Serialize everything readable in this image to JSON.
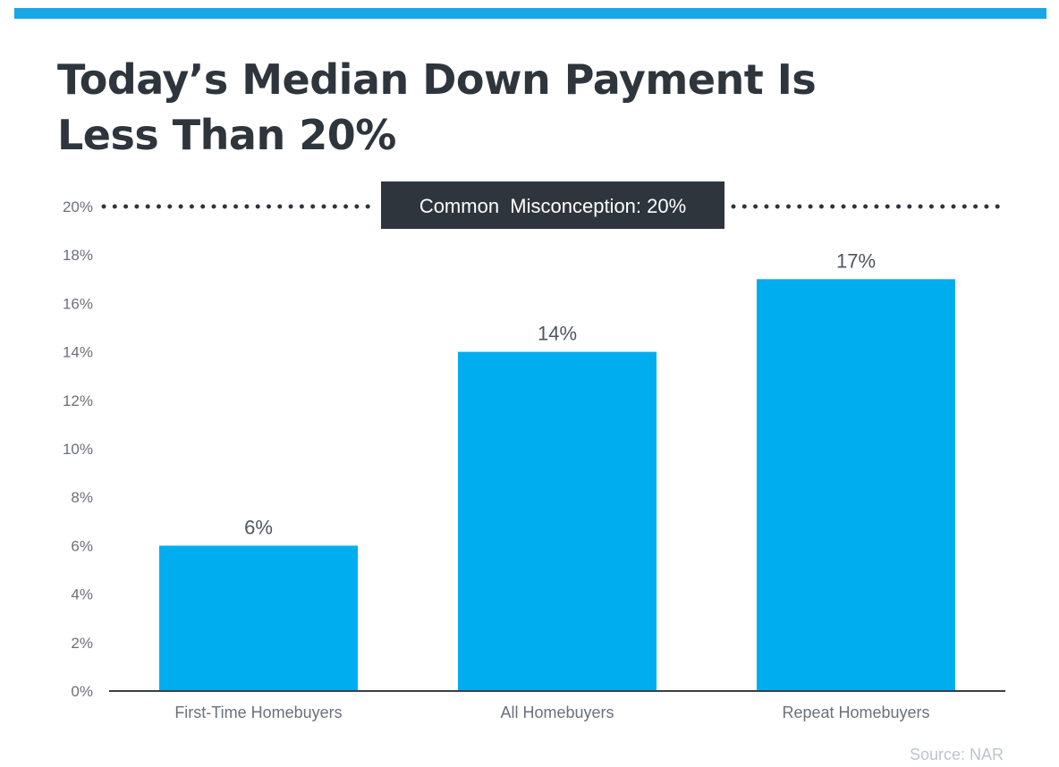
{
  "title_lines": [
    "Today’s Median Down Payment Is",
    "Less Than 20%"
  ],
  "callout": "Common  Misconception: 20%",
  "source": "Source: NAR",
  "colors": {
    "bar": "#00aeef",
    "accent_bar": "#1aa7e6",
    "title": "#2e353d",
    "callout_bg": "#2e353d"
  },
  "chart_data": {
    "type": "bar",
    "categories": [
      "First-Time Homebuyers",
      "All Homebuyers",
      "Repeat Homebuyers"
    ],
    "values": [
      6,
      14,
      17
    ],
    "data_labels": [
      "6%",
      "14%",
      "17%"
    ],
    "ylim": [
      0,
      20
    ],
    "yticks": [
      "0%",
      "2%",
      "4%",
      "6%",
      "8%",
      "10%",
      "12%",
      "14%",
      "16%",
      "18%",
      "20%"
    ],
    "reference_line": {
      "value": 20,
      "label": "Common  Misconception: 20%",
      "style": "dotted"
    },
    "grid": false,
    "legend": "none"
  }
}
